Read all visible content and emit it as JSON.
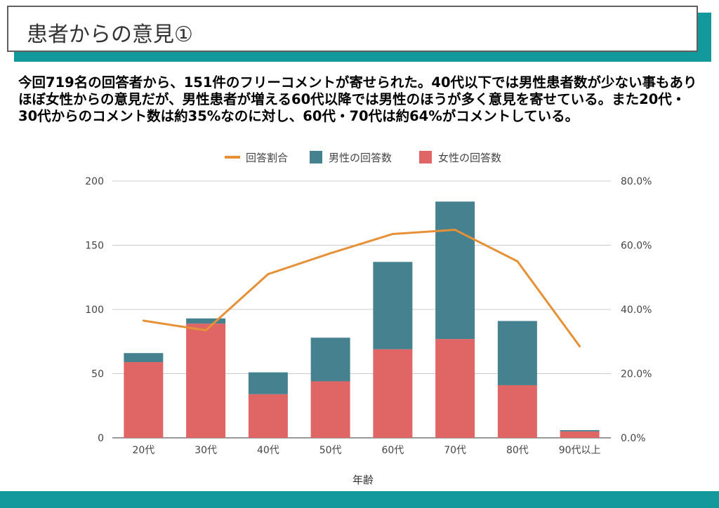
{
  "slide": {
    "title": "患者からの意見①",
    "summary": "今回719名の回答者から、151件のフリーコメントが寄せられた。40代以下では男性患者数が少ない事もありほぼ女性からの意見だが、男性患者が増える60代以降では男性のほうが多く意見を寄せている。また20代・30代からのコメント数は約35%なのに対し、60代・70代は約64%がコメントしている。",
    "colors": {
      "accent": "#12999c",
      "title_border": "#5f5f5f"
    }
  },
  "chart_data": {
    "type": "bar",
    "stacked": true,
    "categories": [
      "20代",
      "30代",
      "40代",
      "50代",
      "60代",
      "70代",
      "80代",
      "90代以上"
    ],
    "series": [
      {
        "name": "女性の回答数",
        "axis": "left",
        "color": "#e06666",
        "values": [
          59,
          89,
          34,
          44,
          69,
          77,
          41,
          5
        ]
      },
      {
        "name": "男性の回答数",
        "axis": "left",
        "color": "#45818e",
        "values": [
          7,
          4,
          17,
          34,
          68,
          107,
          50,
          1
        ]
      },
      {
        "name": "回答割合",
        "type": "line",
        "axis": "right",
        "color": "#e69138",
        "values": [
          36.5,
          33.5,
          51,
          57.5,
          63.5,
          64.8,
          55,
          28.5
        ]
      }
    ],
    "legend_order": [
      "回答割合",
      "男性の回答数",
      "女性の回答数"
    ],
    "xlabel": "年齢",
    "ylabel": "",
    "ylim": [
      0,
      200
    ],
    "yticks": [
      "0",
      "50",
      "100",
      "150",
      "200"
    ],
    "y2lim": [
      0,
      80
    ],
    "y2ticks": [
      "0.0%",
      "20.0%",
      "40.0%",
      "60.0%",
      "80.0%"
    ],
    "grid": true,
    "legend_position": "top"
  }
}
